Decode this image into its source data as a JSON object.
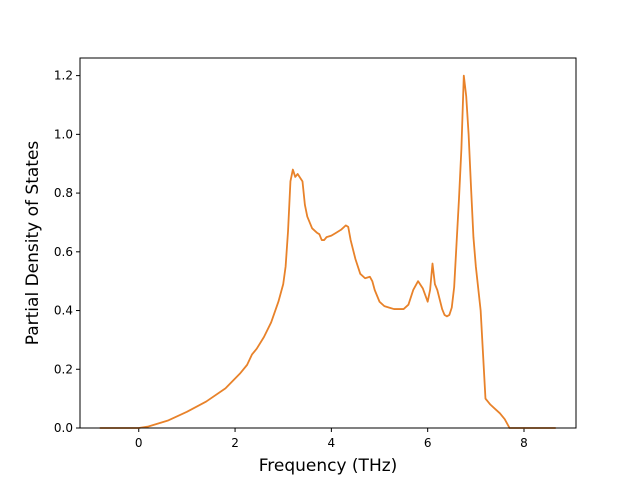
{
  "chart_data": {
    "type": "line",
    "title": "",
    "xlabel": "Frequency (THz)",
    "ylabel": "Partial Density of States",
    "xlim": [
      -1.22,
      9.08
    ],
    "ylim": [
      0.0,
      1.26
    ],
    "x_ticks": [
      0,
      2,
      4,
      6,
      8
    ],
    "y_ticks": [
      0.0,
      0.2,
      0.4,
      0.6,
      0.8,
      1.0,
      1.2
    ],
    "x_tick_labels": [
      "0",
      "2",
      "4",
      "6",
      "8"
    ],
    "y_tick_labels": [
      "0.0",
      "0.2",
      "0.4",
      "0.6",
      "0.8",
      "1.0",
      "1.2"
    ],
    "grid": false,
    "legend": "none",
    "series": [
      {
        "color": "#e8822a",
        "x": [
          -0.8,
          0.0,
          0.2,
          0.6,
          1.0,
          1.4,
          1.8,
          2.1,
          2.25,
          2.35,
          2.45,
          2.6,
          2.75,
          2.9,
          3.0,
          3.05,
          3.1,
          3.15,
          3.2,
          3.25,
          3.3,
          3.4,
          3.45,
          3.5,
          3.6,
          3.7,
          3.75,
          3.8,
          3.85,
          3.9,
          4.0,
          4.1,
          4.2,
          4.3,
          4.35,
          4.4,
          4.5,
          4.6,
          4.7,
          4.8,
          4.85,
          4.9,
          5.0,
          5.1,
          5.2,
          5.3,
          5.4,
          5.5,
          5.6,
          5.7,
          5.8,
          5.9,
          6.0,
          6.05,
          6.1,
          6.15,
          6.2,
          6.3,
          6.35,
          6.4,
          6.45,
          6.5,
          6.55,
          6.6,
          6.65,
          6.7,
          6.75,
          6.8,
          6.85,
          6.9,
          6.95,
          7.0,
          7.1,
          7.2,
          7.25,
          7.3,
          7.4,
          7.5,
          7.6,
          7.7,
          7.75,
          7.8,
          7.9,
          8.0,
          8.2,
          8.4,
          8.65
        ],
        "y": [
          0.0,
          0.0,
          0.005,
          0.025,
          0.055,
          0.09,
          0.135,
          0.185,
          0.215,
          0.25,
          0.27,
          0.31,
          0.36,
          0.43,
          0.49,
          0.55,
          0.67,
          0.84,
          0.88,
          0.855,
          0.865,
          0.84,
          0.76,
          0.72,
          0.68,
          0.665,
          0.66,
          0.64,
          0.64,
          0.65,
          0.655,
          0.665,
          0.675,
          0.69,
          0.685,
          0.64,
          0.575,
          0.525,
          0.51,
          0.515,
          0.5,
          0.47,
          0.43,
          0.415,
          0.41,
          0.405,
          0.405,
          0.405,
          0.42,
          0.47,
          0.5,
          0.475,
          0.43,
          0.47,
          0.56,
          0.49,
          0.47,
          0.405,
          0.385,
          0.38,
          0.385,
          0.41,
          0.48,
          0.63,
          0.78,
          0.95,
          1.2,
          1.13,
          1.0,
          0.82,
          0.65,
          0.55,
          0.4,
          0.1,
          0.09,
          0.08,
          0.065,
          0.05,
          0.03,
          0.0,
          0.0,
          0.0,
          0.0,
          0.0,
          0.0,
          0.0,
          0.0
        ]
      }
    ]
  }
}
